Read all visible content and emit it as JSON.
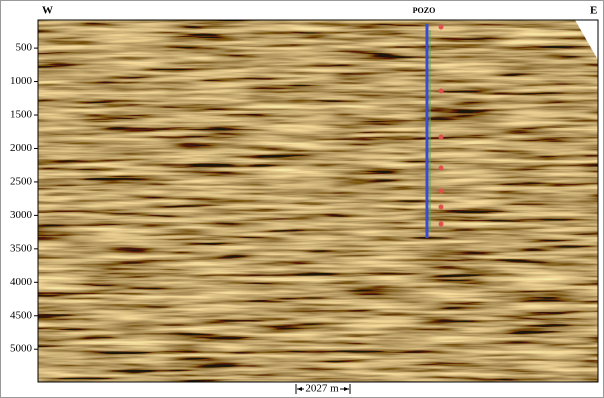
{
  "section": {
    "west": "W",
    "east": "E",
    "well": "POZO",
    "scale_bar": "2027 m",
    "ylim": [
      80,
      5490
    ],
    "yticks": [
      500,
      1000,
      1500,
      2000,
      2500,
      3000,
      3500,
      4000,
      4500,
      5000
    ]
  }
}
